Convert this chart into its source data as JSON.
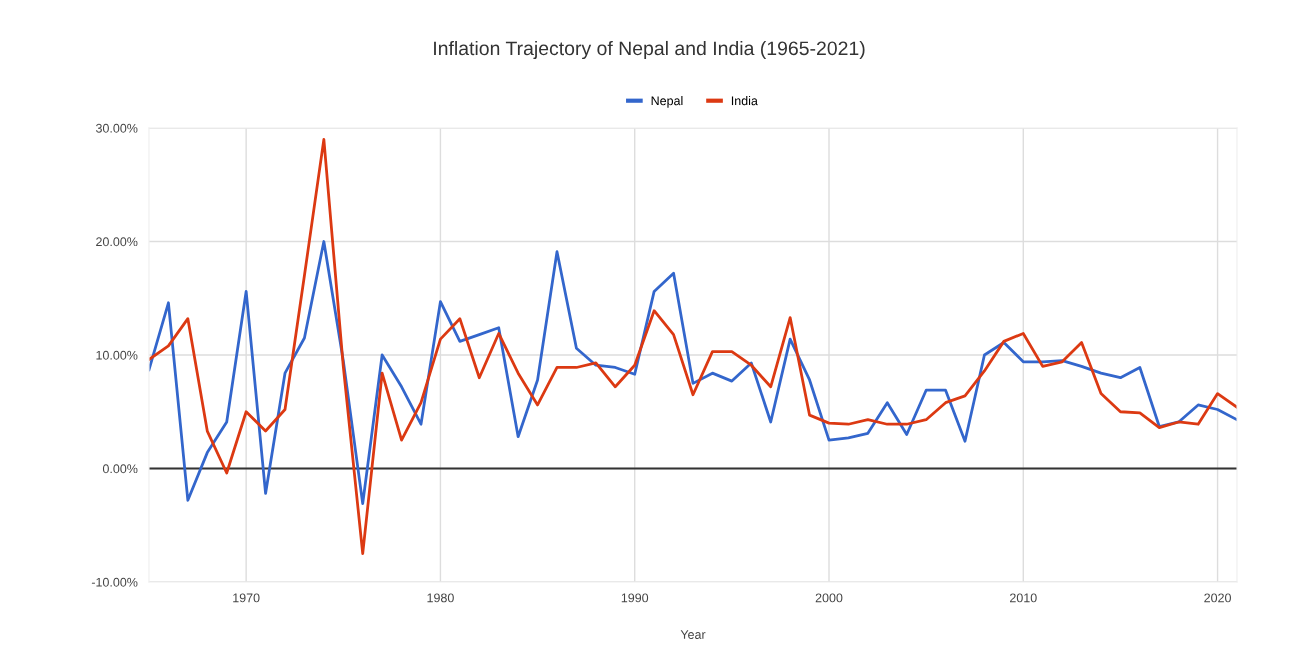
{
  "chart_data": {
    "type": "line",
    "title": "Inflation Trajectory of Nepal and India (1965-2021)",
    "xlabel": "Year",
    "x": [
      1965,
      1966,
      1967,
      1968,
      1969,
      1970,
      1971,
      1972,
      1973,
      1974,
      1975,
      1976,
      1977,
      1978,
      1979,
      1980,
      1981,
      1982,
      1983,
      1984,
      1985,
      1986,
      1987,
      1988,
      1989,
      1990,
      1991,
      1992,
      1993,
      1994,
      1995,
      1996,
      1997,
      1998,
      1999,
      2000,
      2001,
      2002,
      2003,
      2004,
      2005,
      2006,
      2007,
      2008,
      2009,
      2010,
      2011,
      2012,
      2013,
      2014,
      2015,
      2016,
      2017,
      2018,
      2019,
      2020,
      2021
    ],
    "series": [
      {
        "name": "Nepal",
        "color": "#3366cc",
        "values": [
          8.7,
          14.6,
          -2.8,
          1.4,
          4.1,
          15.6,
          -2.2,
          8.4,
          11.5,
          20.0,
          9.5,
          -3.1,
          10.0,
          7.2,
          3.9,
          14.7,
          11.2,
          11.8,
          12.4,
          2.8,
          7.8,
          19.1,
          10.6,
          9.1,
          8.9,
          8.3,
          15.6,
          17.2,
          7.5,
          8.4,
          7.7,
          9.3,
          4.1,
          11.4,
          7.8,
          2.5,
          2.7,
          3.1,
          5.8,
          3.0,
          6.9,
          6.9,
          2.4,
          10.0,
          11.1,
          9.4,
          9.4,
          9.5,
          9.0,
          8.4,
          8.0,
          8.9,
          3.7,
          4.1,
          5.6,
          5.2,
          4.3
        ]
      },
      {
        "name": "India",
        "color": "#dc3912",
        "values": [
          9.6,
          10.8,
          13.2,
          3.3,
          -0.4,
          5.0,
          3.3,
          5.2,
          17.0,
          29.0,
          9.0,
          -7.5,
          8.4,
          2.5,
          5.8,
          11.4,
          13.2,
          8.0,
          11.9,
          8.4,
          5.6,
          8.9,
          8.9,
          9.3,
          7.2,
          9.1,
          13.9,
          11.8,
          6.5,
          10.3,
          10.3,
          9.1,
          7.2,
          13.3,
          4.7,
          4.0,
          3.9,
          4.3,
          3.9,
          3.9,
          4.3,
          5.8,
          6.4,
          8.6,
          11.2,
          11.9,
          9.0,
          9.4,
          11.1,
          6.6,
          5.0,
          4.9,
          3.6,
          4.1,
          3.9,
          6.6,
          5.4
        ]
      }
    ],
    "xlim": [
      1965,
      2021
    ],
    "xticks": [
      1970,
      1980,
      1990,
      2000,
      2010,
      2020
    ],
    "ylim": [
      -10,
      30
    ],
    "yticks": [
      {
        "value": -10,
        "label": "-10.00%"
      },
      {
        "value": 0,
        "label": "0.00%"
      },
      {
        "value": 10,
        "label": "10.00%"
      },
      {
        "value": 20,
        "label": "20.00%"
      },
      {
        "value": 30,
        "label": "30.00%"
      }
    ],
    "ref_lines": [
      {
        "axis": "y",
        "value": 0,
        "color": "#333333"
      }
    ],
    "grid": true,
    "legend": "top",
    "marker": "none",
    "line_style": "solid"
  }
}
